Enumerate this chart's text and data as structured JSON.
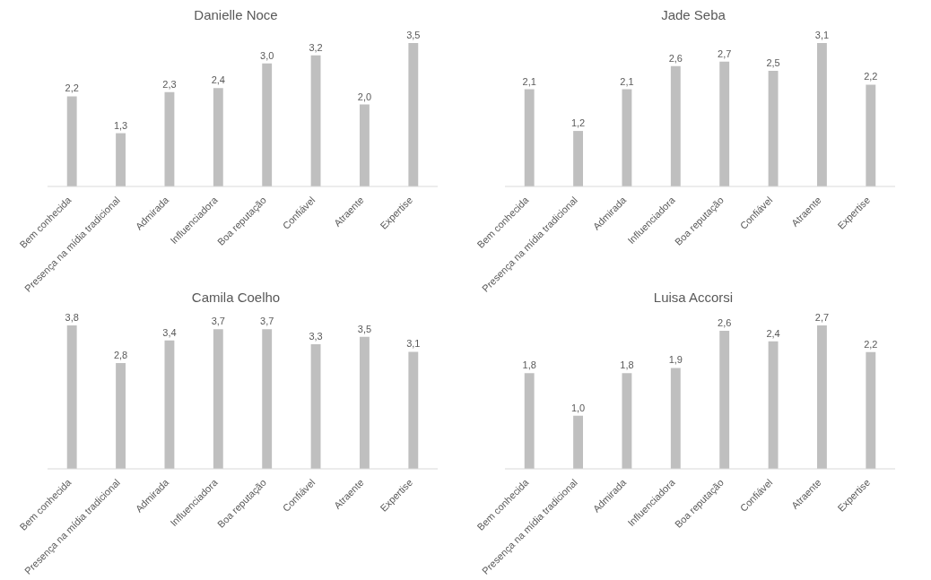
{
  "chart_data": [
    {
      "type": "bar",
      "title": "Danielle Noce",
      "categories": [
        "Bem conhecida",
        "Presença na mídia tradicional",
        "Admirada",
        "Influenciadora",
        "Boa reputação",
        "Confiável",
        "Atraente",
        "Expertise"
      ],
      "color": "#bfbfbf",
      "values": [
        2.2,
        1.3,
        2.3,
        2.4,
        3.0,
        3.2,
        2.0,
        3.5
      ],
      "value_labels": [
        "2,2",
        "1,3",
        "2,3",
        "2,4",
        "3,0",
        "3,2",
        "2,0",
        "3,5"
      ]
    },
    {
      "type": "bar",
      "title": "Jade Seba",
      "categories": [
        "Bem conhecida",
        "Presença na mídia tradicional",
        "Admirada",
        "Influenciadora",
        "Boa reputação",
        "Confiável",
        "Atraente",
        "Expertise"
      ],
      "color": "#bfbfbf",
      "values": [
        2.1,
        1.2,
        2.1,
        2.6,
        2.7,
        2.5,
        3.1,
        2.2
      ],
      "value_labels": [
        "2,1",
        "1,2",
        "2,1",
        "2,6",
        "2,7",
        "2,5",
        "3,1",
        "2,2"
      ]
    },
    {
      "type": "bar",
      "title": "Camila Coelho",
      "categories": [
        "Bem conhecida",
        "Presença na mídia tradicional",
        "Admirada",
        "Influenciadora",
        "Boa reputação",
        "Confiável",
        "Atraente",
        "Expertise"
      ],
      "color": "#bfbfbf",
      "values": [
        3.8,
        2.8,
        3.4,
        3.7,
        3.7,
        3.3,
        3.5,
        3.1
      ],
      "value_labels": [
        "3,8",
        "2,8",
        "3,4",
        "3,7",
        "3,7",
        "3,3",
        "3,5",
        "3,1"
      ]
    },
    {
      "type": "bar",
      "title": "Luisa Accorsi",
      "categories": [
        "Bem conhecida",
        "Presença na mídia tradicional",
        "Admirada",
        "Influenciadora",
        "Boa reputação",
        "Confiável",
        "Atraente",
        "Expertise"
      ],
      "color": "#bfbfbf",
      "values": [
        1.8,
        1.0,
        1.8,
        1.9,
        2.6,
        2.4,
        2.7,
        2.2
      ],
      "value_labels": [
        "1,8",
        "1,0",
        "1,8",
        "1,9",
        "2,6",
        "2,4",
        "2,7",
        "2,2"
      ]
    }
  ]
}
